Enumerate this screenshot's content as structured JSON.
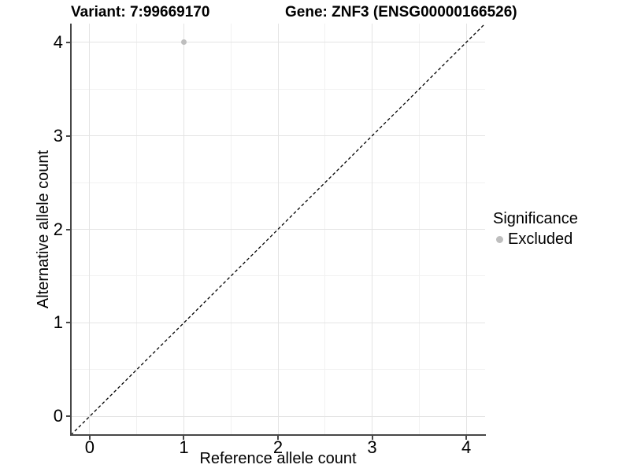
{
  "figure": {
    "title_left": "Variant: 7:99669170",
    "title_right": "Gene: ZNF3 (ENSG00000166526)"
  },
  "chart_data": {
    "type": "scatter",
    "title_left": "Variant: 7:99669170",
    "title_right": "Gene: ZNF3 (ENSG00000166526)",
    "xlabel": "Reference allele count",
    "ylabel": "Alternative allele count",
    "xlim": [
      -0.2,
      4.2
    ],
    "ylim": [
      -0.2,
      4.2
    ],
    "x_ticks": [
      0,
      1,
      2,
      3,
      4
    ],
    "y_ticks": [
      0,
      1,
      2,
      3,
      4
    ],
    "grid": "major+minor",
    "points": [
      {
        "x": 1,
        "y": 4,
        "significance": "Excluded"
      }
    ],
    "identity_line": {
      "slope": 1,
      "intercept": 0,
      "style": "dashed"
    },
    "legend": {
      "title": "Significance",
      "position": "right",
      "entries": [
        {
          "label": "Excluded",
          "color": "#bebebe"
        }
      ]
    },
    "colors": {
      "point": "#bebebe",
      "grid_major": "#e4e4e4",
      "grid_minor": "#f1f1f1",
      "axis_line": "#474747",
      "dashed_line": "#000000",
      "text": "#000000"
    }
  }
}
